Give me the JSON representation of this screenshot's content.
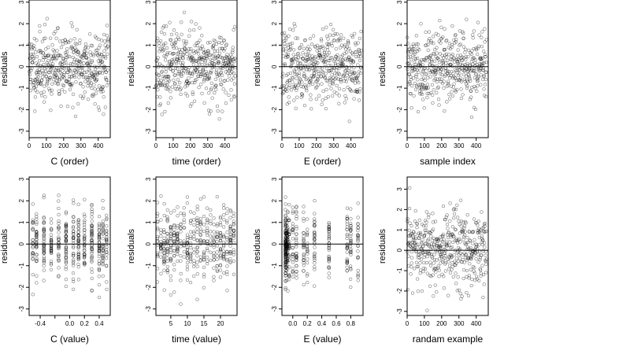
{
  "chart_data": [
    {
      "type": "scatter",
      "xlabel": "C (order)",
      "ylabel": "residuals",
      "xlim": [
        0,
        470
      ],
      "ylim": [
        -3.3,
        3.1
      ],
      "xticks": [
        0,
        100,
        200,
        300,
        400
      ],
      "yticks": [
        -3,
        -2,
        -1,
        0,
        1,
        2,
        3
      ],
      "hline": 0,
      "x_kind": "order",
      "x_range": [
        1,
        460
      ],
      "seed": 11,
      "n": 460,
      "scale": 0.82
    },
    {
      "type": "scatter",
      "xlabel": "time (order)",
      "ylabel": "residuals",
      "xlim": [
        0,
        470
      ],
      "ylim": [
        -3.3,
        3.1
      ],
      "xticks": [
        0,
        100,
        200,
        300,
        400
      ],
      "yticks": [
        -3,
        -2,
        -1,
        0,
        1,
        2,
        3
      ],
      "hline": 0,
      "x_kind": "order",
      "x_range": [
        1,
        460
      ],
      "seed": 23,
      "n": 460,
      "scale": 0.82
    },
    {
      "type": "scatter",
      "xlabel": "E (order)",
      "ylabel": "residuals",
      "xlim": [
        0,
        470
      ],
      "ylim": [
        -3.3,
        3.1
      ],
      "xticks": [
        0,
        100,
        200,
        300,
        400
      ],
      "yticks": [
        -3,
        -2,
        -1,
        0,
        1,
        2,
        3
      ],
      "hline": 0,
      "x_kind": "order",
      "x_range": [
        1,
        460
      ],
      "seed": 37,
      "n": 460,
      "scale": 0.82
    },
    {
      "type": "scatter",
      "xlabel": "sample index",
      "ylabel": "residuals",
      "xlim": [
        0,
        470
      ],
      "ylim": [
        -3.3,
        3.1
      ],
      "xticks": [
        0,
        100,
        200,
        300,
        400
      ],
      "yticks": [
        -3,
        -2,
        -1,
        0,
        1,
        2,
        3
      ],
      "hline": 0,
      "x_kind": "order",
      "x_range": [
        1,
        460
      ],
      "seed": 41,
      "n": 460,
      "scale": 0.82
    },
    {
      "type": "scatter",
      "xlabel": "C (value)",
      "ylabel": "residuals",
      "xlim": [
        -0.55,
        0.55
      ],
      "ylim": [
        -3.3,
        3.1
      ],
      "xticks": [
        -0.4,
        -0.2,
        0,
        0.2,
        0.4
      ],
      "xtick_labels": [
        "-0.4",
        "",
        "0.0",
        "0.2",
        "0.4"
      ],
      "yticks": [
        -3,
        -2,
        -1,
        0,
        1,
        2,
        3
      ],
      "hline": 0,
      "x_kind": "levels",
      "levels": [
        -0.5,
        -0.45,
        -0.35,
        -0.25,
        -0.15,
        -0.05,
        0.05,
        0.12,
        0.2,
        0.3,
        0.4,
        0.45,
        0.5
      ],
      "seed": 53,
      "n": 460,
      "scale": 0.82
    },
    {
      "type": "scatter",
      "xlabel": "time (value)",
      "ylabel": "residuals",
      "xlim": [
        0.5,
        25
      ],
      "ylim": [
        -3.3,
        3.1
      ],
      "xticks": [
        5,
        10,
        15,
        20
      ],
      "yticks": [
        -3,
        -2,
        -1,
        0,
        1,
        2,
        3
      ],
      "hline": 0,
      "x_kind": "levels",
      "levels": [
        1,
        2,
        3,
        4,
        5,
        6,
        7,
        8,
        9,
        10,
        11,
        12,
        13,
        14,
        15,
        16,
        17,
        18,
        19,
        20,
        21,
        22,
        23,
        24
      ],
      "seed": 67,
      "n": 460,
      "scale": 0.82
    },
    {
      "type": "scatter",
      "xlabel": "E (value)",
      "ylabel": "residuals",
      "xlim": [
        -0.15,
        0.97
      ],
      "ylim": [
        -3.3,
        3.1
      ],
      "xticks": [
        0,
        0.2,
        0.4,
        0.6,
        0.8
      ],
      "xtick_labels": [
        "0.0",
        "0.2",
        "0.4",
        "0.6",
        "0.8"
      ],
      "yticks": [
        -3,
        -2,
        -1,
        0,
        1,
        2,
        3
      ],
      "hline": 0,
      "x_kind": "skewed",
      "levels": [
        -0.1,
        -0.1,
        -0.1,
        -0.1,
        -0.09,
        -0.08,
        -0.07,
        -0.05,
        0.0,
        0.05,
        0.15,
        0.2,
        0.3,
        0.5,
        0.75,
        0.8,
        0.9
      ],
      "seed": 79,
      "n": 460,
      "scale": 0.82
    },
    {
      "type": "scatter",
      "xlabel": "randam example",
      "ylabel": "residuals",
      "xlim": [
        0,
        470
      ],
      "ylim": [
        -3.2,
        3.6
      ],
      "xticks": [
        0,
        100,
        200,
        300,
        400
      ],
      "yticks": [
        -3,
        -2,
        -1,
        0,
        1,
        2,
        3
      ],
      "hline": 0,
      "x_kind": "order",
      "x_range": [
        1,
        460
      ],
      "seed": 97,
      "n": 460,
      "scale": 1.0
    }
  ]
}
